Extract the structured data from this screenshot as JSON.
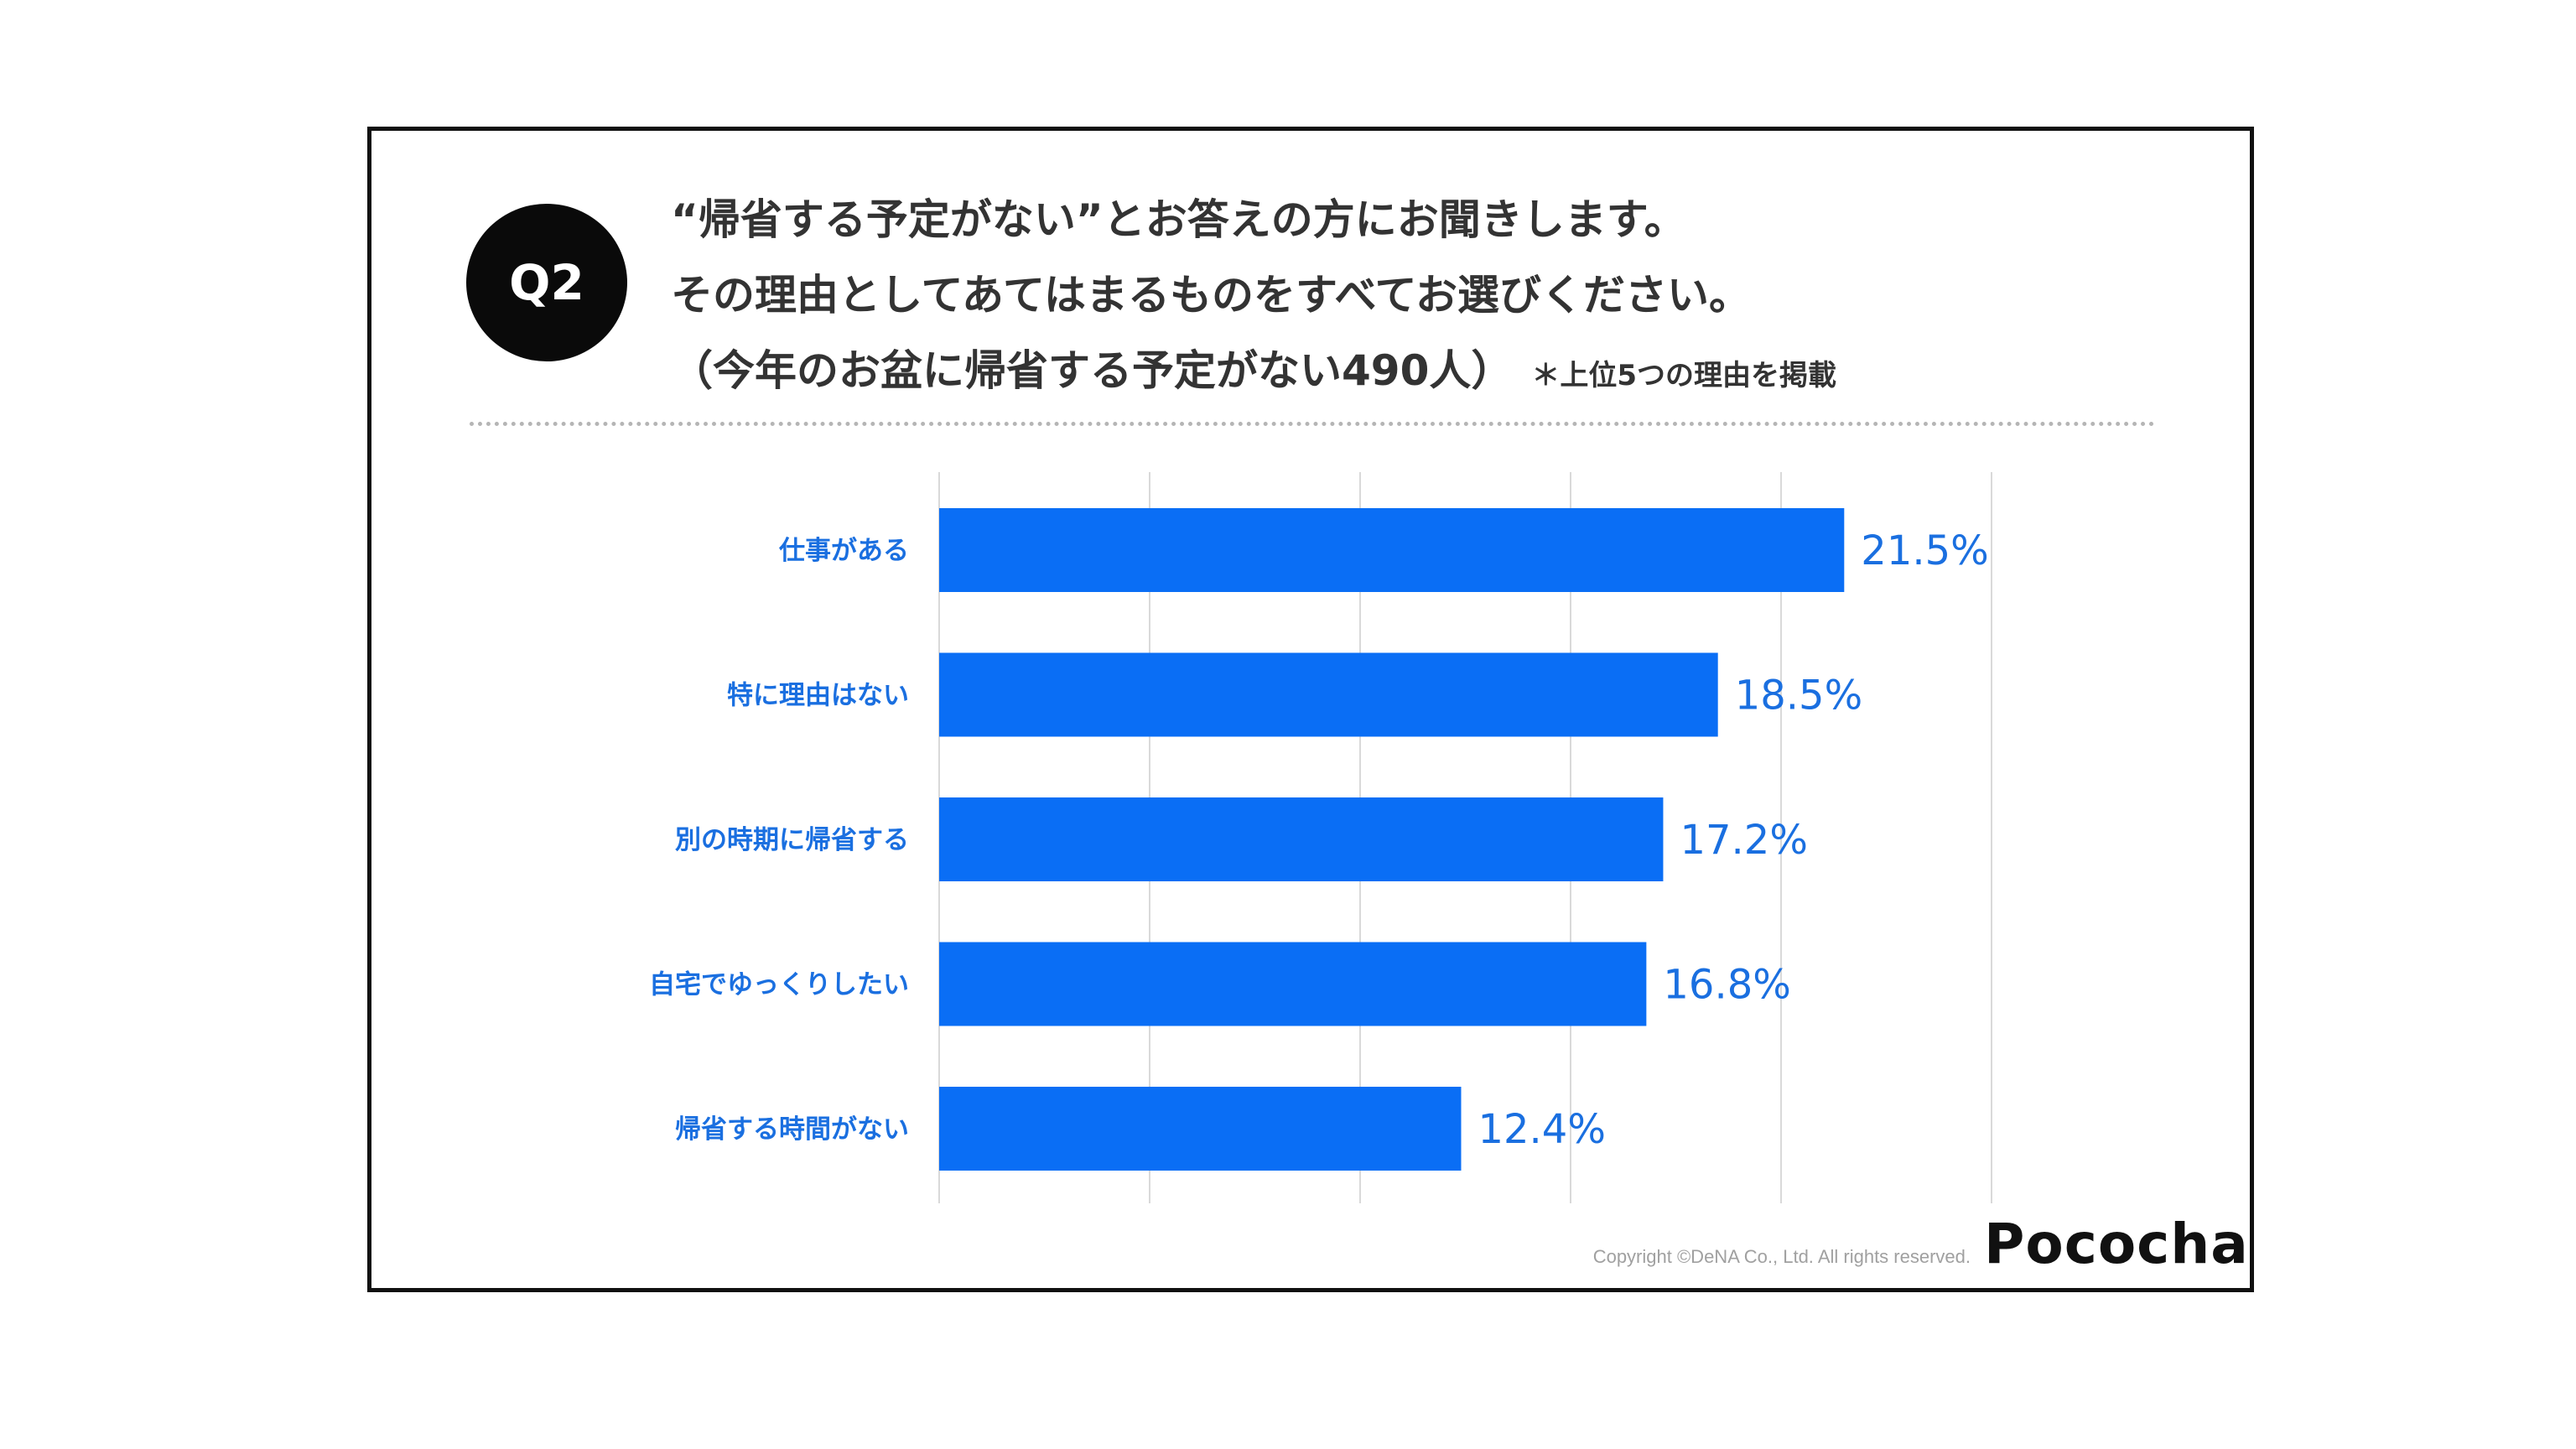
{
  "question": {
    "badge": "Q2",
    "line1": "“帰省する予定がない”とお答えの方にお聞きします。",
    "line2": "その理由としてあてはまるものをすべてお選びください。",
    "line3": "（今年のお盆に帰省する予定がない490人）",
    "note": "＊上位5つの理由を掲載"
  },
  "footer": {
    "copyright": "Copyright ©DeNA Co., Ltd. All rights reserved.",
    "logo": "Pococha"
  },
  "colors": {
    "bar": "#0A6EF5",
    "label": "#1A6FE0",
    "grid": "#d9d9d9"
  },
  "chart_data": {
    "type": "bar",
    "orientation": "horizontal",
    "categories": [
      "仕事がある",
      "特に理由はない",
      "別の時期に帰省する",
      "自宅でゆっくりしたい",
      "帰省する時間がない"
    ],
    "values": [
      21.5,
      18.5,
      17.2,
      16.8,
      12.4
    ],
    "value_labels": [
      "21.5%",
      "18.5%",
      "17.2%",
      "16.8%",
      "12.4%"
    ],
    "unit": "%",
    "xlim": [
      0,
      25
    ],
    "grid": true
  }
}
